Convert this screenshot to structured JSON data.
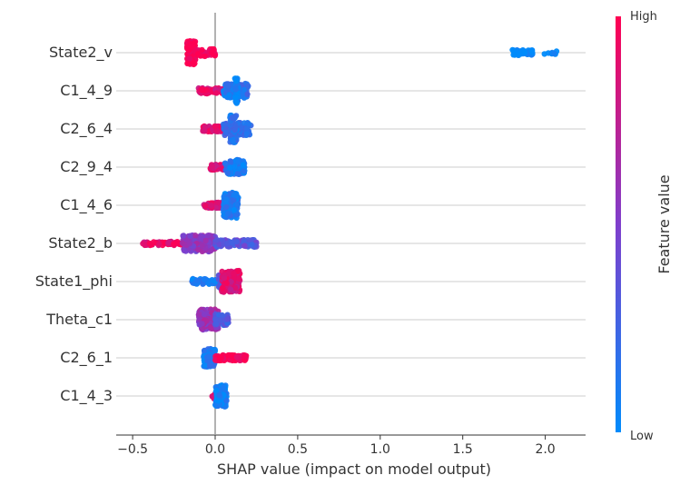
{
  "chart_data": {
    "type": "scatter",
    "subtype": "shap-beeswarm",
    "title": "",
    "xlabel": "SHAP value (impact on model output)",
    "ylabel": "",
    "xlim": [
      -0.6,
      2.25
    ],
    "xticks": [
      -0.5,
      0.0,
      0.5,
      1.0,
      1.5,
      2.0
    ],
    "xtick_labels": [
      "−0.5",
      "0.0",
      "0.5",
      "1.0",
      "1.5",
      "2.0"
    ],
    "grid": "horizontal-per-feature",
    "colorbar": {
      "label": "Feature value",
      "high_label": "High",
      "low_label": "Low",
      "high_color": "#ff0052",
      "low_color": "#008bfb"
    },
    "features": [
      {
        "name": "State2_v",
        "clusters": [
          {
            "x0": -0.17,
            "x1": -0.12,
            "height": 13,
            "value": 1.0,
            "n": 160
          },
          {
            "x0": -0.12,
            "x1": 0.0,
            "height": 4,
            "value": 0.95,
            "n": 40
          },
          {
            "x0": 1.8,
            "x1": 1.93,
            "height": 3,
            "value": 0.0,
            "n": 50
          },
          {
            "x0": 1.93,
            "x1": 2.12,
            "height": 2,
            "value": 0.0,
            "n": 8
          }
        ]
      },
      {
        "name": "C1_4_9",
        "clusters": [
          {
            "x0": -0.1,
            "x1": 0.1,
            "height": 3,
            "value": 0.9,
            "n": 90
          },
          {
            "x0": 0.05,
            "x1": 0.2,
            "height": 8,
            "value": 0.15,
            "n": 110
          },
          {
            "x0": 0.12,
            "x1": 0.14,
            "height": 14,
            "value": 0.05,
            "n": 50
          }
        ]
      },
      {
        "name": "C2_6_4",
        "clusters": [
          {
            "x0": -0.08,
            "x1": 0.05,
            "height": 3,
            "value": 0.88,
            "n": 70
          },
          {
            "x0": 0.05,
            "x1": 0.22,
            "height": 7,
            "value": 0.2,
            "n": 100
          },
          {
            "x0": 0.09,
            "x1": 0.13,
            "height": 15,
            "value": 0.15,
            "n": 60
          }
        ]
      },
      {
        "name": "C2_9_4",
        "clusters": [
          {
            "x0": -0.03,
            "x1": 0.07,
            "height": 3,
            "value": 0.85,
            "n": 60
          },
          {
            "x0": 0.06,
            "x1": 0.18,
            "height": 8,
            "value": 0.1,
            "n": 110
          }
        ]
      },
      {
        "name": "C1_4_6",
        "clusters": [
          {
            "x0": -0.07,
            "x1": 0.05,
            "height": 3,
            "value": 0.85,
            "n": 60
          },
          {
            "x0": 0.05,
            "x1": 0.14,
            "height": 14,
            "value": 0.1,
            "n": 160
          }
        ]
      },
      {
        "name": "State2_b",
        "clusters": [
          {
            "x0": -0.45,
            "x1": -0.2,
            "height": 2,
            "value": 0.9,
            "n": 60
          },
          {
            "x0": -0.2,
            "x1": 0.0,
            "height": 9,
            "value": 0.55,
            "n": 140
          },
          {
            "x0": 0.0,
            "x1": 0.25,
            "height": 4,
            "value": 0.35,
            "n": 100
          }
        ]
      },
      {
        "name": "State1_phi",
        "clusters": [
          {
            "x0": -0.14,
            "x1": 0.02,
            "height": 3,
            "value": 0.1,
            "n": 40
          },
          {
            "x0": 0.02,
            "x1": 0.08,
            "height": 8,
            "value": 0.3,
            "n": 50
          },
          {
            "x0": 0.04,
            "x1": 0.15,
            "height": 12,
            "value": 0.85,
            "n": 130
          }
        ]
      },
      {
        "name": "Theta_c1",
        "clusters": [
          {
            "x0": -0.1,
            "x1": 0.02,
            "height": 12,
            "value": 0.6,
            "n": 130
          },
          {
            "x0": 0.0,
            "x1": 0.08,
            "height": 6,
            "value": 0.3,
            "n": 50
          }
        ]
      },
      {
        "name": "C2_6_1",
        "clusters": [
          {
            "x0": -0.07,
            "x1": 0.0,
            "height": 10,
            "value": 0.1,
            "n": 90
          },
          {
            "x0": 0.0,
            "x1": 0.19,
            "height": 3,
            "value": 1.0,
            "n": 110
          }
        ]
      },
      {
        "name": "C1_4_3",
        "clusters": [
          {
            "x0": -0.02,
            "x1": 0.01,
            "height": 3,
            "value": 0.9,
            "n": 20
          },
          {
            "x0": 0.0,
            "x1": 0.07,
            "height": 12,
            "value": 0.05,
            "n": 110
          }
        ]
      }
    ]
  }
}
